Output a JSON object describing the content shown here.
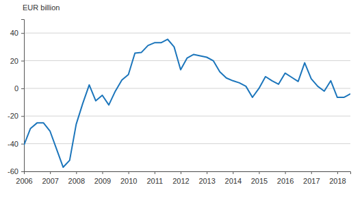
{
  "chart_data": {
    "type": "line",
    "y_label": "EUR billion",
    "categories": [
      "2006",
      null,
      null,
      null,
      "2007",
      null,
      null,
      null,
      "2008",
      null,
      null,
      null,
      "2009",
      null,
      null,
      null,
      "2010",
      null,
      null,
      null,
      "2011",
      null,
      null,
      null,
      "2012",
      null,
      null,
      null,
      "2013",
      null,
      null,
      null,
      "2014",
      null,
      null,
      null,
      "2015",
      null,
      null,
      null,
      "2016",
      null,
      null,
      null,
      "2017",
      null,
      null,
      null,
      "2018",
      null,
      null
    ],
    "values": [
      -41,
      -29,
      -25,
      -25,
      -31,
      -44,
      -57,
      -52,
      -26,
      -11,
      2.5,
      -9,
      -5,
      -12,
      -2,
      6,
      10,
      25.5,
      26,
      31,
      33,
      33,
      35.5,
      30,
      13.5,
      22,
      24.5,
      23.5,
      22.5,
      20,
      12,
      7.5,
      5.5,
      4,
      1.5,
      -6.5,
      0,
      8.5,
      5.5,
      3,
      11,
      8,
      5,
      18.5,
      7,
      1.5,
      -2,
      5.5,
      -6.5,
      -6.5,
      -4
    ],
    "color": "#1b75bb",
    "ylim": [
      -60,
      50
    ],
    "yticks": [
      -60,
      -40,
      -20,
      0,
      20,
      40
    ],
    "grid": true
  }
}
